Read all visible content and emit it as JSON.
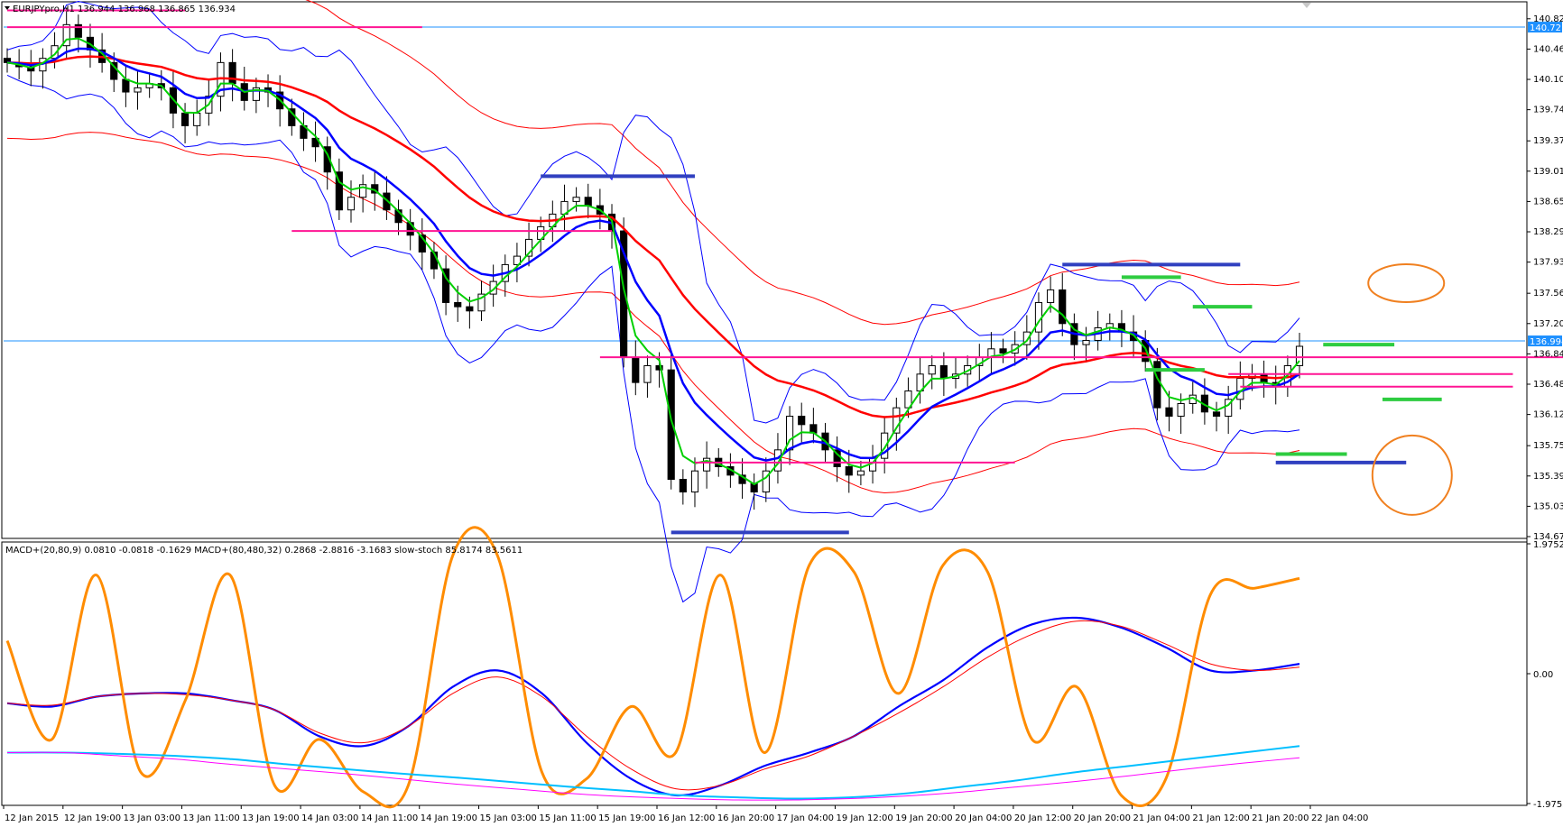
{
  "window": {
    "symbol_header": "EURJPYpro,H1  136.944 136.968 136.865 136.934",
    "indicator_header": "MACD+(20,80,9) 0.0810 -0.0818 -0.1629  MACD+(80,480,32) 0.2868 -2.8816 -3.1683  slow-stoch 85.8174 83.5611"
  },
  "chart_data": [
    {
      "type": "candlestick",
      "symbol": "EURJPYpro",
      "timeframe": "H1",
      "ohlc_last": {
        "open": 136.944,
        "high": 136.968,
        "low": 136.865,
        "close": 136.934
      },
      "ylim": [
        134.67,
        141.0
      ],
      "y_ticks": [
        "140.820",
        "140.460",
        "140.100",
        "139.740",
        "139.370",
        "139.010",
        "138.650",
        "138.290",
        "137.930",
        "137.560",
        "137.200",
        "136.840",
        "136.480",
        "136.120",
        "135.750",
        "135.390",
        "135.030",
        "134.670"
      ],
      "price_labels": [
        {
          "value": 140.721,
          "text": "140.721",
          "color": "#1e90ff"
        },
        {
          "value": 136.994,
          "text": "136.994",
          "color": "#1e90ff"
        }
      ],
      "x_ticks": [
        "12 Jan 2015",
        "12 Jan 19:00",
        "13 Jan 03:00",
        "13 Jan 11:00",
        "13 Jan 19:00",
        "14 Jan 03:00",
        "14 Jan 11:00",
        "14 Jan 19:00",
        "15 Jan 03:00",
        "15 Jan 11:00",
        "15 Jan 19:00",
        "16 Jan 12:00",
        "16 Jan 20:00",
        "17 Jan 04:00",
        "19 Jan 12:00",
        "19 Jan 20:00",
        "20 Jan 04:00",
        "20 Jan 12:00",
        "20 Jan 20:00",
        "21 Jan 04:00",
        "21 Jan 12:00",
        "21 Jan 20:00",
        "22 Jan 04:00"
      ],
      "close_series": [
        140.3,
        140.25,
        140.2,
        140.35,
        140.5,
        140.75,
        140.6,
        140.45,
        140.3,
        140.1,
        139.95,
        140.0,
        140.05,
        140.0,
        139.7,
        139.55,
        139.7,
        139.9,
        140.3,
        140.05,
        139.85,
        140.0,
        139.95,
        139.75,
        139.55,
        139.4,
        139.3,
        139.0,
        138.55,
        138.7,
        138.85,
        138.75,
        138.55,
        138.4,
        138.25,
        138.05,
        137.85,
        137.45,
        137.4,
        137.35,
        137.55,
        137.7,
        137.9,
        138.0,
        138.2,
        138.35,
        138.5,
        138.65,
        138.7,
        138.6,
        138.5,
        138.3,
        136.8,
        136.5,
        136.7,
        136.65,
        135.35,
        135.2,
        135.45,
        135.6,
        135.5,
        135.4,
        135.3,
        135.2,
        135.45,
        135.7,
        136.1,
        136.0,
        135.9,
        135.7,
        135.5,
        135.4,
        135.45,
        135.6,
        135.9,
        136.2,
        136.4,
        136.6,
        136.7,
        136.55,
        136.6,
        136.7,
        136.8,
        136.9,
        136.85,
        136.95,
        137.1,
        137.45,
        137.6,
        137.2,
        136.95,
        137.0,
        137.15,
        137.2,
        137.1,
        137.0,
        136.75,
        136.2,
        136.1,
        136.25,
        136.35,
        136.15,
        136.1,
        136.3,
        136.55,
        136.6,
        136.5,
        136.45,
        136.7,
        136.93
      ],
      "overlays": [
        {
          "name": "EMA fast",
          "color": "#00d000"
        },
        {
          "name": "EMA mid",
          "color": "#0000ff"
        },
        {
          "name": "EMA slow",
          "color": "#ff0000"
        },
        {
          "name": "Bollinger Bands",
          "color": "#0000ff"
        },
        {
          "name": "Envelope",
          "color": "#ff0000"
        }
      ],
      "annotation_colors": {
        "resistance": "#ff1493",
        "swing": "#3040c0",
        "range": "#2ecc40",
        "circle": "#f08020"
      }
    },
    {
      "type": "line",
      "ylim": [
        -1.9752,
        1.9752
      ],
      "y_ticks": [
        "1.9752",
        "0.00",
        "-1.9752"
      ],
      "series": [
        {
          "color": "#0000ff",
          "values": [
            -0.45,
            -0.5,
            -0.35,
            -0.3,
            -0.3,
            -0.4,
            -0.55,
            -0.95,
            -1.1,
            -0.8,
            -0.2,
            0.05,
            -0.3,
            -1.05,
            -1.6,
            -1.85,
            -1.7,
            -1.4,
            -1.2,
            -0.95,
            -0.5,
            -0.1,
            0.4,
            0.75,
            0.85,
            0.7,
            0.4,
            0.05,
            0.05,
            0.15
          ]
        },
        {
          "color": "#ff0000",
          "values": [
            -0.45,
            -0.48,
            -0.35,
            -0.3,
            -0.32,
            -0.4,
            -0.55,
            -0.9,
            -1.05,
            -0.8,
            -0.3,
            -0.05,
            -0.35,
            -0.95,
            -1.45,
            -1.75,
            -1.7,
            -1.45,
            -1.25,
            -0.95,
            -0.6,
            -0.2,
            0.25,
            0.6,
            0.8,
            0.72,
            0.45,
            0.15,
            0.05,
            0.1
          ]
        },
        {
          "color": "#ff8c00",
          "values": [
            0.5,
            -1.0,
            1.5,
            -1.5,
            -0.4,
            1.5,
            -1.7,
            -1.0,
            -1.8,
            -1.7,
            1.8,
            1.8,
            -1.5,
            -1.6,
            -0.5,
            -1.2,
            1.5,
            -1.2,
            1.65,
            1.55,
            -0.3,
            1.65,
            1.55,
            -1.0,
            -0.2,
            -1.85,
            -1.6,
            1.2,
            1.3,
            1.45
          ]
        },
        {
          "color": "#00bfff",
          "values": [
            -1.2,
            -1.2,
            -1.22,
            -1.25,
            -1.3,
            -1.38,
            -1.45,
            -1.52,
            -1.58,
            -1.65,
            -1.72,
            -1.78,
            -1.85,
            -1.88,
            -1.9,
            -1.88,
            -1.82,
            -1.72,
            -1.62,
            -1.5,
            -1.4,
            -1.3,
            -1.2,
            -1.1
          ]
        },
        {
          "color": "#ff00ff",
          "values": [
            -1.2,
            -1.2,
            -1.25,
            -1.3,
            -1.38,
            -1.45,
            -1.52,
            -1.6,
            -1.68,
            -1.75,
            -1.82,
            -1.87,
            -1.9,
            -1.92,
            -1.92,
            -1.9,
            -1.86,
            -1.8,
            -1.72,
            -1.64,
            -1.55,
            -1.45,
            -1.36,
            -1.28
          ]
        }
      ]
    }
  ]
}
